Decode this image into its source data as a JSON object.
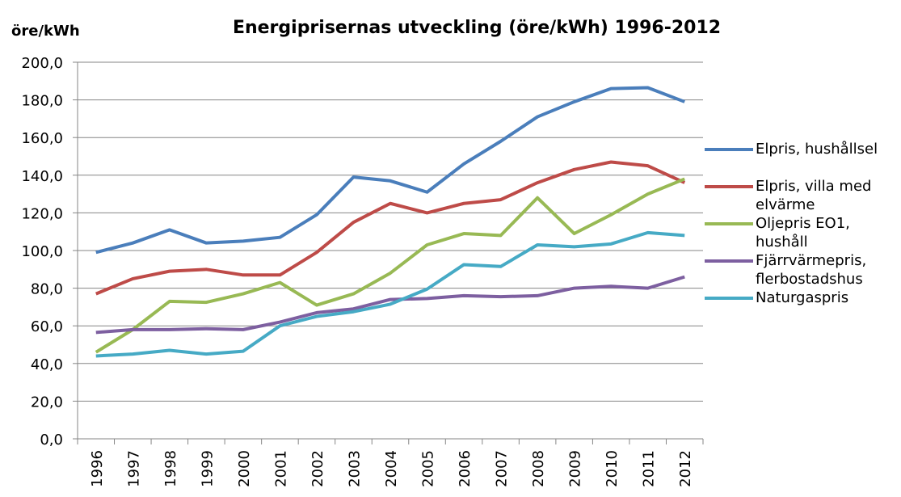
{
  "chart_data": {
    "type": "line",
    "title": "Energiprisernas utveckling (öre/kWh) 1996-2012",
    "y_label": "öre/kWh",
    "categories": [
      "1996",
      "1997",
      "1998",
      "1999",
      "2000",
      "2001",
      "2002",
      "2003",
      "2004",
      "2005",
      "2006",
      "2007",
      "2008",
      "2009",
      "2010",
      "2011",
      "2012"
    ],
    "series": [
      {
        "name": "Elpris, hushållsel",
        "color": "#4a7ebb",
        "values": [
          99,
          104,
          111,
          104,
          105,
          107,
          119,
          139,
          137,
          131,
          146,
          158,
          171,
          179,
          186,
          186.5,
          179
        ]
      },
      {
        "name": "Elpris, villa med elvärme",
        "color": "#be4b48",
        "values": [
          77,
          85,
          89,
          90,
          87,
          87,
          99,
          115,
          125,
          120,
          125,
          127,
          136,
          143,
          147,
          145,
          136
        ]
      },
      {
        "name": "Oljepris EO1, hushåll",
        "color": "#98b954",
        "values": [
          46,
          58,
          73,
          72.5,
          77,
          83,
          71,
          77,
          88,
          103,
          109,
          108,
          128,
          109,
          119,
          130,
          138
        ]
      },
      {
        "name": "Fjärrvärmepris, flerbostadshus",
        "color": "#7d5fa0",
        "values": [
          56.5,
          58,
          58,
          58.5,
          58,
          62,
          67,
          69,
          74,
          74.5,
          76,
          75.5,
          76,
          80,
          81,
          80,
          86
        ]
      },
      {
        "name": "Naturgaspris",
        "color": "#46aac5",
        "values": [
          44,
          45,
          47,
          45,
          46.5,
          60,
          65,
          67.5,
          71.5,
          79.5,
          92.5,
          91.5,
          103,
          102,
          103.5,
          109.5,
          108
        ]
      }
    ],
    "ylim": [
      0,
      200
    ],
    "yticks": [
      {
        "value": 0,
        "label": "0,0"
      },
      {
        "value": 20,
        "label": "20,0"
      },
      {
        "value": 40,
        "label": "40,0"
      },
      {
        "value": 60,
        "label": "60,0"
      },
      {
        "value": 80,
        "label": "80,0"
      },
      {
        "value": 100,
        "label": "100,0"
      },
      {
        "value": 120,
        "label": "120,0"
      },
      {
        "value": 140,
        "label": "140,0"
      },
      {
        "value": 160,
        "label": "160,0"
      },
      {
        "value": 180,
        "label": "180,0"
      },
      {
        "value": 200,
        "label": "200,0"
      }
    ],
    "grid": true,
    "legend": "right"
  }
}
